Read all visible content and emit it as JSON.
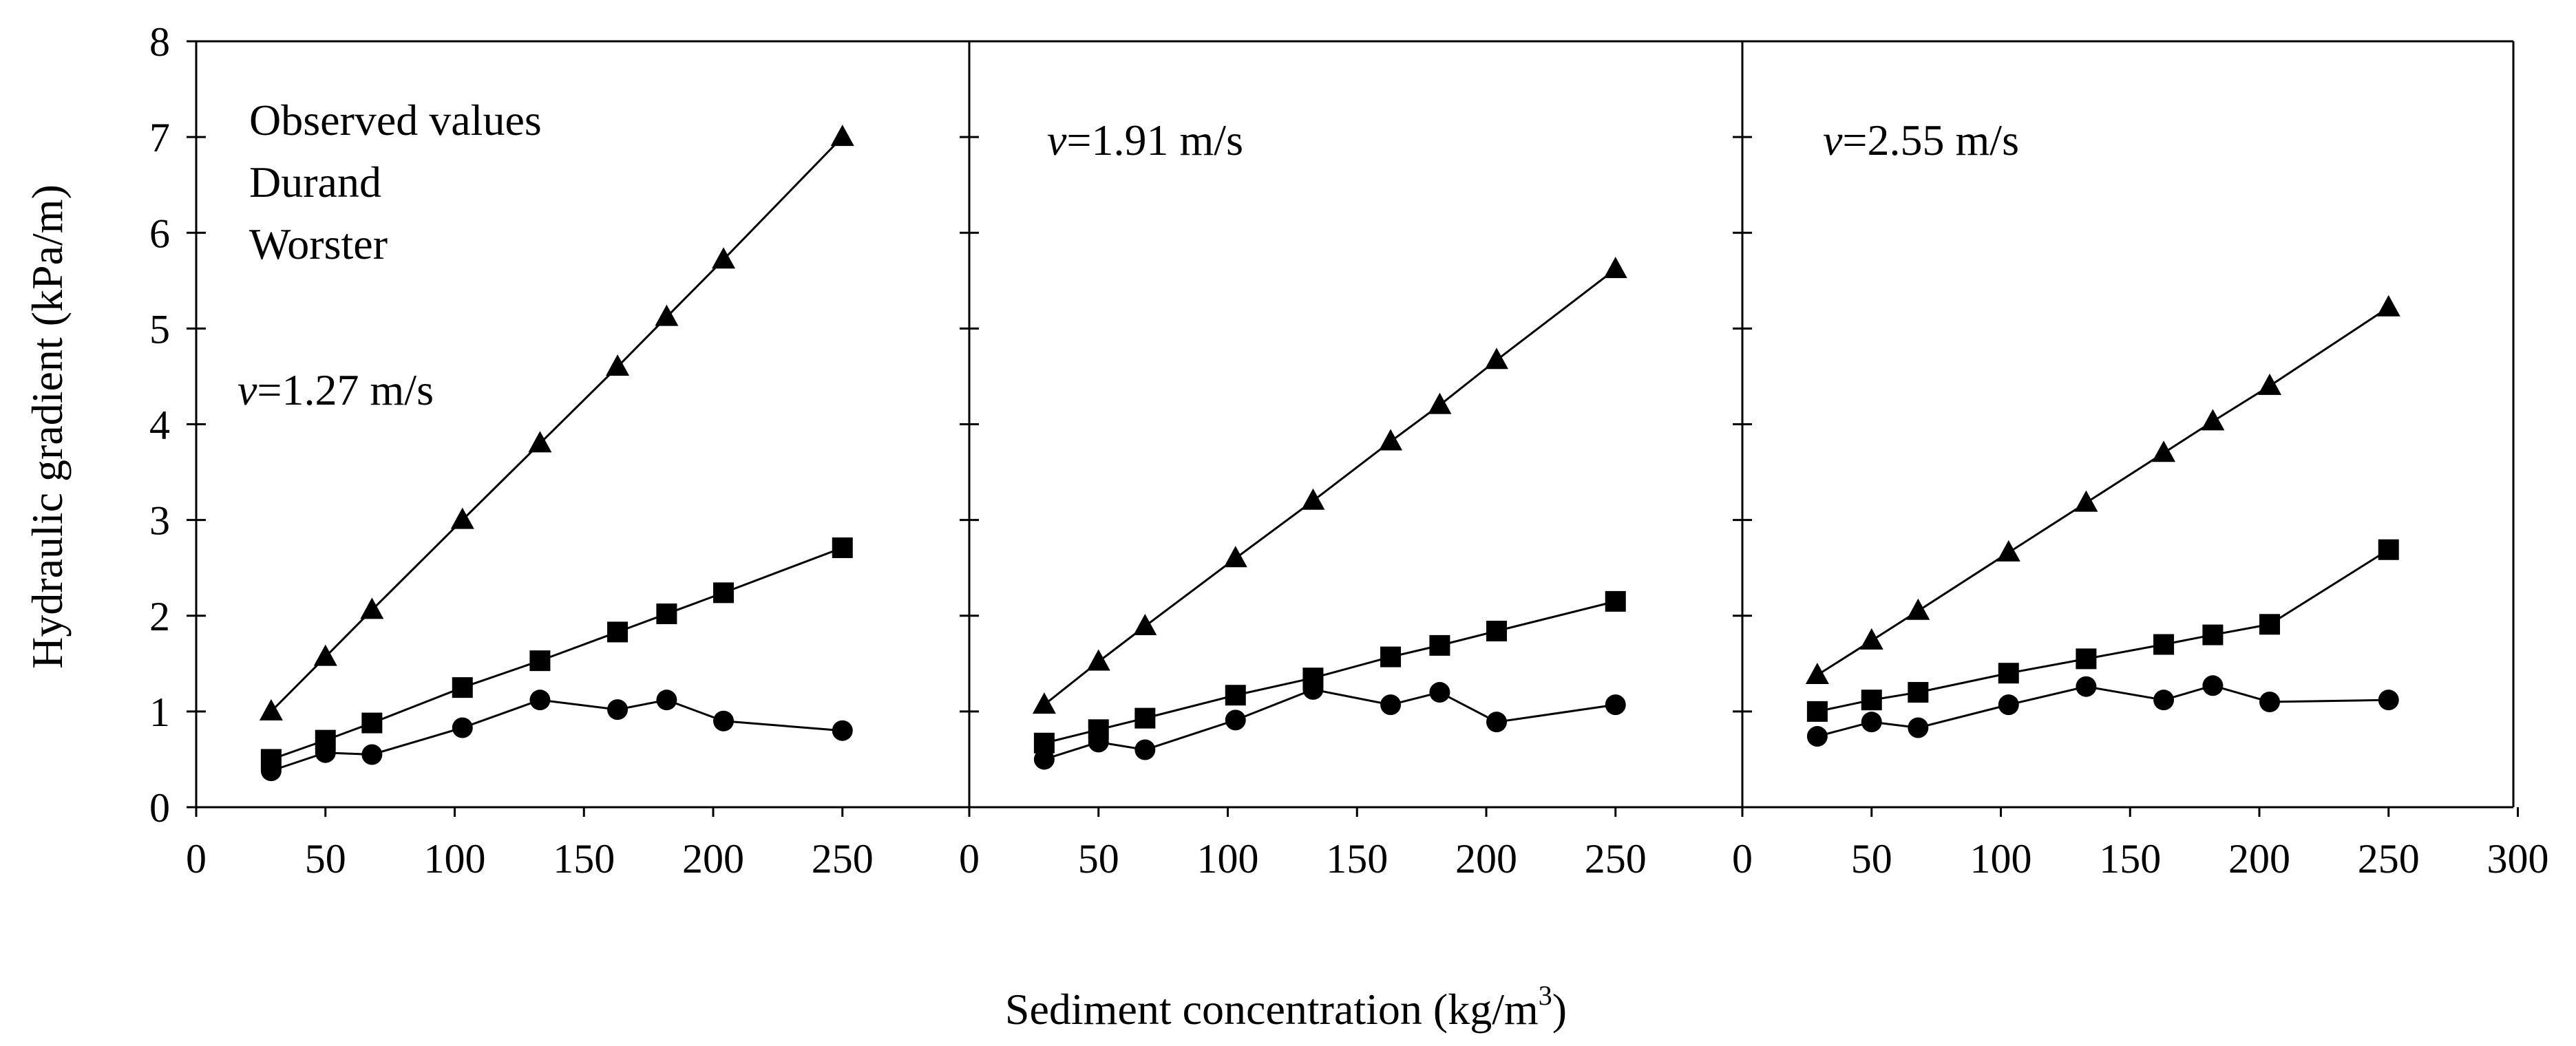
{
  "figure": {
    "ylabel": "Hydraulic gradient (kPa/m)",
    "xlabel_main": "Sediment concentration (kg/m",
    "xlabel_sup": "3",
    "xlabel_end": ")",
    "legend": [
      "Observed values",
      "Durand",
      "Worster"
    ]
  },
  "colors": {
    "axis": "#000000",
    "marker": "#000000",
    "background": "#ffffff"
  },
  "chart_data": [
    {
      "type": "line",
      "annotation_italic": "v",
      "annotation_rest": "=1.27 m/s",
      "xlim": [
        0,
        300
      ],
      "ylim": [
        0,
        8
      ],
      "x_ticks": [
        0,
        50,
        100,
        150,
        200,
        250
      ],
      "y_ticks": [
        0,
        1,
        2,
        3,
        4,
        5,
        6,
        7,
        8
      ],
      "x": [
        29,
        50,
        68,
        103,
        133,
        163,
        182,
        204,
        250
      ],
      "series": [
        {
          "name": "Observed values",
          "marker": "circle",
          "values": [
            0.38,
            0.57,
            0.55,
            0.83,
            1.12,
            1.02,
            1.12,
            0.9,
            0.8
          ]
        },
        {
          "name": "Durand",
          "marker": "square",
          "values": [
            0.5,
            0.7,
            0.88,
            1.25,
            1.53,
            1.83,
            2.02,
            2.24,
            2.71
          ]
        },
        {
          "name": "Worster",
          "marker": "triangle",
          "values": [
            1.0,
            1.57,
            2.06,
            3.0,
            3.8,
            4.6,
            5.12,
            5.72,
            7.0
          ]
        }
      ]
    },
    {
      "type": "line",
      "annotation_italic": "v",
      "annotation_rest": "=1.91 m/s",
      "xlim": [
        0,
        300
      ],
      "ylim": [
        0,
        8
      ],
      "x_ticks": [
        0,
        50,
        100,
        150,
        200,
        250
      ],
      "y_ticks": [
        0,
        1,
        2,
        3,
        4,
        5,
        6,
        7,
        8
      ],
      "x": [
        29,
        50,
        68,
        103,
        133,
        163,
        182,
        204,
        250
      ],
      "series": [
        {
          "name": "Observed values",
          "marker": "circle",
          "values": [
            0.5,
            0.68,
            0.6,
            0.91,
            1.23,
            1.07,
            1.2,
            0.89,
            1.07
          ]
        },
        {
          "name": "Durand",
          "marker": "square",
          "values": [
            0.67,
            0.81,
            0.93,
            1.17,
            1.35,
            1.57,
            1.69,
            1.84,
            2.15
          ]
        },
        {
          "name": "Worster",
          "marker": "triangle",
          "values": [
            1.07,
            1.52,
            1.89,
            2.6,
            3.2,
            3.82,
            4.2,
            4.67,
            5.62
          ]
        }
      ]
    },
    {
      "type": "line",
      "annotation_italic": "v",
      "annotation_rest": "=2.55 m/s",
      "xlim": [
        0,
        300
      ],
      "ylim": [
        0,
        8
      ],
      "x_ticks": [
        0,
        50,
        100,
        150,
        200,
        250,
        300
      ],
      "y_ticks": [
        0,
        1,
        2,
        3,
        4,
        5,
        6,
        7,
        8
      ],
      "x": [
        29,
        50,
        68,
        103,
        133,
        163,
        182,
        204,
        250
      ],
      "series": [
        {
          "name": "Observed values",
          "marker": "circle",
          "values": [
            0.74,
            0.89,
            0.83,
            1.07,
            1.26,
            1.12,
            1.27,
            1.1,
            1.12
          ]
        },
        {
          "name": "Durand",
          "marker": "square",
          "values": [
            1.0,
            1.12,
            1.2,
            1.4,
            1.55,
            1.7,
            1.8,
            1.91,
            2.69
          ]
        },
        {
          "name": "Worster",
          "marker": "triangle",
          "values": [
            1.38,
            1.74,
            2.05,
            2.66,
            3.18,
            3.7,
            4.03,
            4.4,
            5.22
          ]
        }
      ]
    }
  ]
}
